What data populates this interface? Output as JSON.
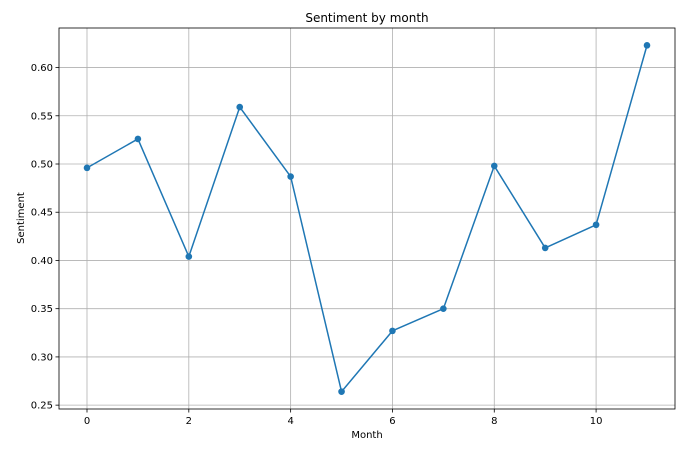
{
  "chart_data": {
    "type": "line",
    "title": "Sentiment by month",
    "xlabel": "Month",
    "ylabel": "Sentiment",
    "x": [
      0,
      1,
      2,
      3,
      4,
      5,
      6,
      7,
      8,
      9,
      10,
      11
    ],
    "series": [
      {
        "values": [
          0.496,
          0.526,
          0.404,
          0.559,
          0.487,
          0.264,
          0.327,
          0.35,
          0.498,
          0.413,
          0.437,
          0.623
        ],
        "color": "#1f77b4",
        "marker": "circle"
      }
    ],
    "xlim": [
      -0.55,
      11.55
    ],
    "ylim": [
      0.246,
      0.641
    ],
    "xticks": [
      0,
      2,
      4,
      6,
      8,
      10
    ],
    "yticks": [
      0.25,
      0.3,
      0.35,
      0.4,
      0.45,
      0.5,
      0.55,
      0.6
    ],
    "ytick_labels": [
      "0.25",
      "0.30",
      "0.35",
      "0.40",
      "0.45",
      "0.50",
      "0.55",
      "0.60"
    ],
    "grid": true
  }
}
